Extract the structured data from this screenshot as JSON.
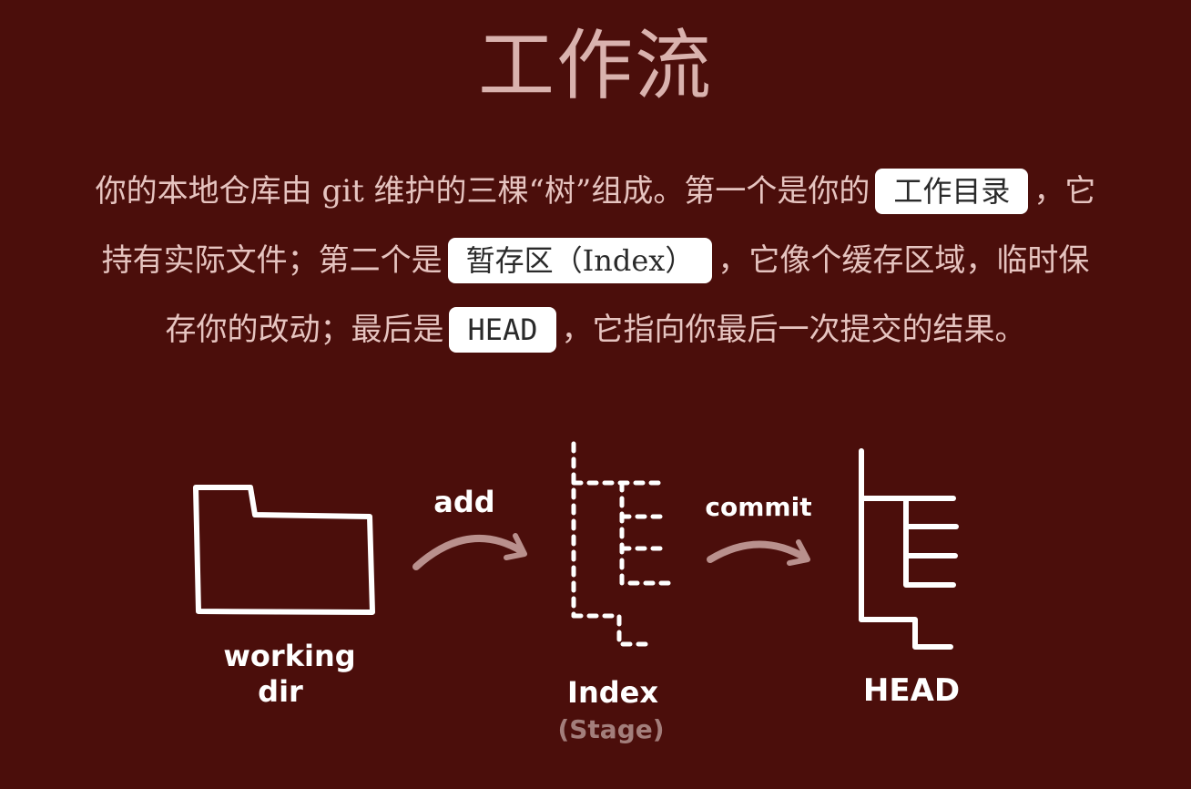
{
  "title": "工作流",
  "paragraph": {
    "line1_before": "你的本地仓库由 git 维护的三棵“树”组成。第一个是你的",
    "pill1": "工作目录",
    "line1_after": "，它",
    "line2_before": "持有实际文件；第二个是",
    "pill2": "暂存区（Index）",
    "line2_after": "，它像个缓存区域，临时保",
    "line3_before": "存你的改动；最后是",
    "pill3": "HEAD",
    "line3_after": "，它指向你最后一次提交的结果。"
  },
  "diagram": {
    "working_dir_label_1": "working",
    "working_dir_label_2": "dir",
    "add_label": "add",
    "commit_label": "commit",
    "index_label": "Index",
    "stage_label": "(Stage)",
    "head_label": "HEAD"
  },
  "colors": {
    "background": "#4b0e0b",
    "title": "#d9b2ae",
    "text": "#e6c4c0",
    "pill_bg": "#ffffff",
    "drawing": "#ffffff",
    "arrow": "#b9908d"
  }
}
